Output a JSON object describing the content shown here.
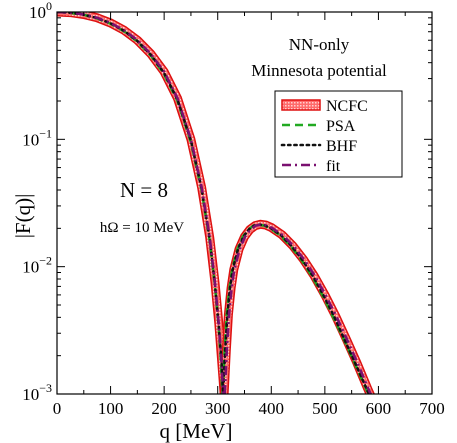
{
  "chart_data": {
    "type": "line",
    "title": "",
    "xlabel": "q  [MeV]",
    "ylabel": "|F(q)|",
    "xlim": [
      0,
      700
    ],
    "ylim": [
      0.001,
      1
    ],
    "yscale": "log",
    "grid": false,
    "legend_position": "right",
    "x_ticks": [
      "0",
      "100",
      "200",
      "300",
      "400",
      "500",
      "600",
      "700"
    ],
    "y_ticks": [
      {
        "base": "10",
        "exp": "0"
      },
      {
        "base": "10",
        "exp": "−1"
      },
      {
        "base": "10",
        "exp": "−2"
      },
      {
        "base": "10",
        "exp": "−3"
      }
    ],
    "annotations": {
      "potential_line1": "NN-only",
      "potential_line2": "Minnesota potential",
      "n_label": "N = 8",
      "homega_label": "hΩ = 10 MeV"
    },
    "series": [
      {
        "name": "NCFC",
        "style": "band",
        "color": "#ee2222",
        "x_lower": [
          0,
          25,
          50,
          75,
          100,
          125,
          150,
          175,
          200,
          225,
          250,
          270,
          285,
          295,
          302,
          307,
          310,
          312
        ],
        "y_lower": [
          1.0,
          0.99,
          0.955,
          0.9,
          0.82,
          0.72,
          0.6,
          0.47,
          0.34,
          0.21,
          0.1,
          0.042,
          0.017,
          0.0075,
          0.0036,
          0.0019,
          0.0013,
          0.001
        ],
        "x_upper": [
          312,
          316,
          320,
          325,
          330,
          340,
          350,
          360,
          370,
          380,
          390,
          400,
          420,
          440,
          460,
          480,
          500,
          520,
          540,
          560,
          580,
          600,
          620,
          630
        ],
        "y_upper": [
          0.001,
          0.0022,
          0.0042,
          0.0068,
          0.0095,
          0.0138,
          0.0172,
          0.0196,
          0.021,
          0.0215,
          0.0212,
          0.0203,
          0.0178,
          0.0146,
          0.0114,
          0.0085,
          0.006,
          0.0041,
          0.0027,
          0.00175,
          0.0011,
          0.00071,
          0.00045,
          0.00035
        ]
      },
      {
        "name": "PSA",
        "style": "dashed",
        "color": "#22aa22",
        "x_lower": [
          0,
          25,
          50,
          75,
          100,
          125,
          150,
          175,
          200,
          225,
          250,
          270,
          285,
          295,
          302,
          306,
          309
        ],
        "y_lower": [
          1.0,
          0.985,
          0.95,
          0.89,
          0.81,
          0.705,
          0.585,
          0.455,
          0.325,
          0.2,
          0.095,
          0.04,
          0.016,
          0.007,
          0.0033,
          0.0018,
          0.001
        ],
        "x_upper": [
          309,
          313,
          317,
          322,
          327,
          337,
          347,
          357,
          367,
          377,
          387,
          397,
          417,
          437,
          457,
          477,
          497,
          517,
          537,
          557,
          577,
          597,
          617
        ],
        "y_upper": [
          0.001,
          0.0022,
          0.0042,
          0.0068,
          0.0095,
          0.0138,
          0.0172,
          0.0196,
          0.021,
          0.0213,
          0.021,
          0.0201,
          0.0176,
          0.0144,
          0.0112,
          0.0083,
          0.0058,
          0.0039,
          0.0026,
          0.0017,
          0.0011,
          0.0007,
          0.00045
        ]
      },
      {
        "name": "BHF",
        "style": "dotted",
        "color": "#111111",
        "x_lower": [
          0,
          25,
          50,
          75,
          100,
          125,
          150,
          175,
          200,
          225,
          250,
          270,
          285,
          295,
          302,
          307,
          310
        ],
        "y_lower": [
          1.0,
          0.988,
          0.952,
          0.895,
          0.815,
          0.712,
          0.592,
          0.462,
          0.332,
          0.205,
          0.098,
          0.041,
          0.0165,
          0.0072,
          0.0034,
          0.0018,
          0.001
        ],
        "x_upper": [
          310,
          314,
          318,
          323,
          328,
          338,
          348,
          358,
          368,
          378,
          388,
          398,
          418,
          438,
          458,
          478,
          498,
          518,
          538,
          558,
          578,
          598,
          618
        ],
        "y_upper": [
          0.001,
          0.0022,
          0.0042,
          0.0068,
          0.0095,
          0.0138,
          0.0172,
          0.0196,
          0.021,
          0.0214,
          0.0211,
          0.0202,
          0.0177,
          0.0145,
          0.0113,
          0.0084,
          0.0059,
          0.004,
          0.0026,
          0.0017,
          0.0011,
          0.0007,
          0.00045
        ]
      },
      {
        "name": "fit",
        "style": "dashdot",
        "color": "#7a1070",
        "x_lower": [
          0,
          25,
          50,
          75,
          100,
          125,
          150,
          175,
          200,
          225,
          250,
          270,
          285,
          295,
          302,
          307,
          310
        ],
        "y_lower": [
          1.0,
          0.99,
          0.955,
          0.9,
          0.82,
          0.72,
          0.6,
          0.47,
          0.34,
          0.21,
          0.1,
          0.042,
          0.017,
          0.0074,
          0.0035,
          0.0018,
          0.001
        ],
        "x_upper": [
          313,
          317,
          321,
          326,
          331,
          341,
          351,
          361,
          371,
          381,
          391,
          401,
          421,
          441,
          461,
          481,
          501,
          521,
          541,
          561,
          581,
          601,
          621
        ],
        "y_upper": [
          0.001,
          0.0022,
          0.0042,
          0.0068,
          0.0095,
          0.0138,
          0.0172,
          0.0196,
          0.021,
          0.0214,
          0.0211,
          0.0202,
          0.0177,
          0.0146,
          0.0114,
          0.0085,
          0.006,
          0.0041,
          0.0027,
          0.00175,
          0.0011,
          0.00071,
          0.00046
        ]
      }
    ]
  }
}
